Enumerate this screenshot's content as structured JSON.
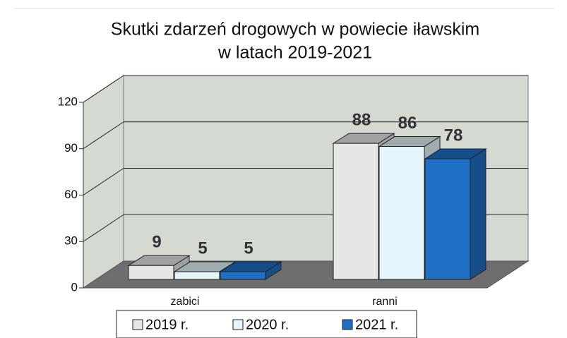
{
  "chart_data": {
    "type": "bar3d",
    "title": "Skutki zdarzeń drogowych w powiecie iławskim",
    "subtitle": "w latach 2019-2021",
    "categories": [
      "zabici",
      "ranni"
    ],
    "series": [
      {
        "name": "2019 r.",
        "color": "#e6e6e6",
        "values": [
          9,
          88
        ]
      },
      {
        "name": "2020 r.",
        "color": "#e3f5fa",
        "values": [
          5,
          86
        ]
      },
      {
        "name": "2021 r.",
        "color": "#1f6fc5",
        "values": [
          5,
          78
        ]
      }
    ],
    "ylim": [
      0,
      120
    ],
    "yticks": [
      0,
      30,
      60,
      90,
      120
    ],
    "grid": true
  }
}
